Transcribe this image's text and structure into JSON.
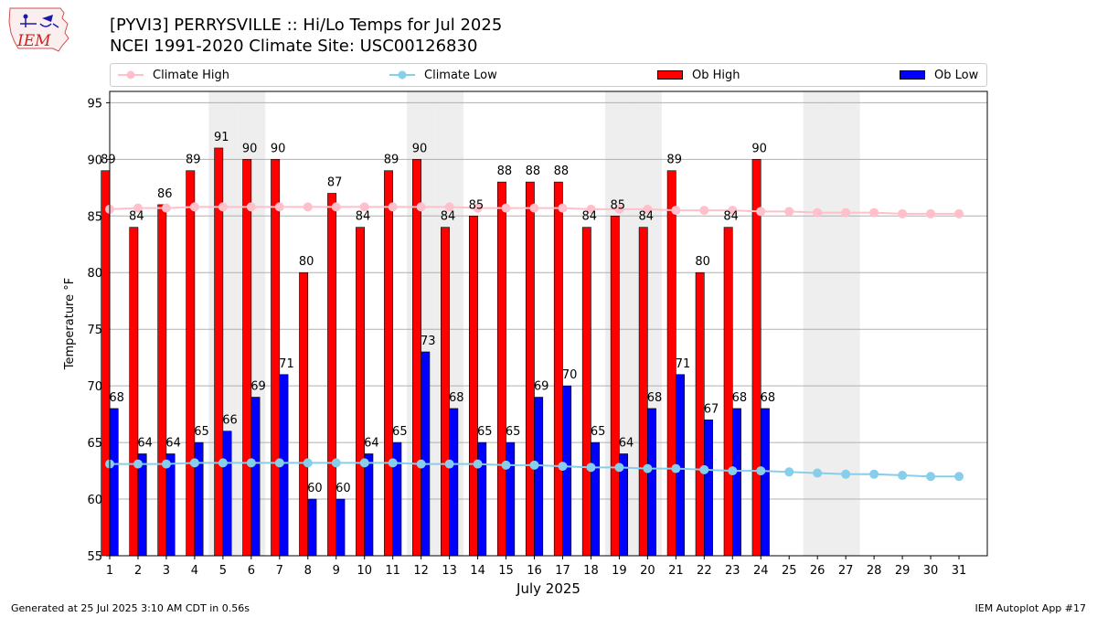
{
  "header": {
    "title_line1": "[PYVI3] PERRYSVILLE :: Hi/Lo Temps for Jul 2025",
    "title_line2": "NCEI 1991-2020 Climate Site: USC00126830",
    "logo_text": "IEM"
  },
  "footer": {
    "left": "Generated at 25 Jul 2025 3:10 AM CDT in 0.56s",
    "right": "IEM Autoplot App #17"
  },
  "colors": {
    "ob_high": "#ff0000",
    "ob_low": "#0000ff",
    "climate_high": "#ffc0cb",
    "climate_low": "#87ceeb",
    "weekend_shade": "#eeeeee",
    "grid": "#b0b0b0"
  },
  "chart_data": {
    "type": "bar",
    "xlabel": "July 2025",
    "ylabel": "Temperature °F",
    "ylim": [
      55,
      96
    ],
    "yticks": [
      55,
      60,
      65,
      70,
      75,
      80,
      85,
      90,
      95
    ],
    "grid": "horizontal",
    "legend_position": "top",
    "categories": [
      "1",
      "2",
      "3",
      "4",
      "5",
      "6",
      "7",
      "8",
      "9",
      "10",
      "11",
      "12",
      "13",
      "14",
      "15",
      "16",
      "17",
      "18",
      "19",
      "20",
      "21",
      "22",
      "23",
      "24",
      "25",
      "26",
      "27",
      "28",
      "29",
      "30",
      "31"
    ],
    "weekend_days": [
      5,
      6,
      12,
      13,
      19,
      20,
      26,
      27
    ],
    "series": [
      {
        "name": "Ob High",
        "kind": "bar",
        "values": [
          89,
          84,
          86,
          89,
          91,
          90,
          90,
          80,
          87,
          84,
          89,
          90,
          84,
          85,
          88,
          88,
          88,
          84,
          85,
          84,
          89,
          80,
          84,
          90,
          null,
          null,
          null,
          null,
          null,
          null,
          null
        ]
      },
      {
        "name": "Ob Low",
        "kind": "bar",
        "values": [
          68,
          64,
          64,
          65,
          66,
          69,
          71,
          60,
          60,
          64,
          65,
          73,
          68,
          65,
          65,
          69,
          70,
          65,
          64,
          68,
          71,
          67,
          68,
          68,
          null,
          null,
          null,
          null,
          null,
          null,
          null
        ]
      },
      {
        "name": "Climate High",
        "kind": "line",
        "values": [
          85.6,
          85.7,
          85.7,
          85.8,
          85.8,
          85.8,
          85.8,
          85.8,
          85.8,
          85.8,
          85.8,
          85.8,
          85.8,
          85.7,
          85.7,
          85.7,
          85.7,
          85.6,
          85.6,
          85.6,
          85.5,
          85.5,
          85.5,
          85.4,
          85.4,
          85.3,
          85.3,
          85.3,
          85.2,
          85.2,
          85.2
        ]
      },
      {
        "name": "Climate Low",
        "kind": "line",
        "values": [
          63.1,
          63.1,
          63.1,
          63.2,
          63.2,
          63.2,
          63.2,
          63.2,
          63.2,
          63.2,
          63.2,
          63.1,
          63.1,
          63.1,
          63.0,
          63.0,
          62.9,
          62.8,
          62.8,
          62.7,
          62.7,
          62.6,
          62.5,
          62.5,
          62.4,
          62.3,
          62.2,
          62.2,
          62.1,
          62.0,
          62.0
        ]
      }
    ]
  }
}
